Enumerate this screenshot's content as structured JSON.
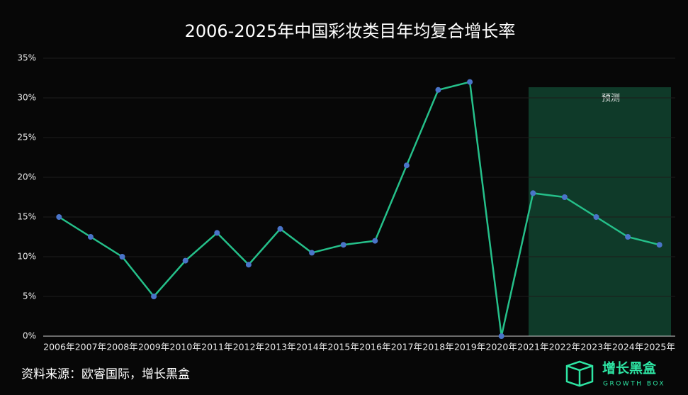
{
  "chart_data": {
    "type": "line",
    "title": "2006-2025年中国彩妆类目年均复合增长率",
    "categories": [
      "2006年",
      "2007年",
      "2008年",
      "2009年",
      "2010年",
      "2011年",
      "2012年",
      "2013年",
      "2014年",
      "2015年",
      "2016年",
      "2017年",
      "2018年",
      "2019年",
      "2020年",
      "2021年",
      "2022年",
      "2023年",
      "2024年",
      "2025年"
    ],
    "series": [
      {
        "color": "#25c08a",
        "marker_color": "#4a74c9",
        "values": [
          15,
          12.5,
          10,
          5,
          9.5,
          13,
          9,
          13.5,
          10.5,
          11.5,
          12,
          21.5,
          31,
          32,
          0,
          18,
          17.5,
          15,
          12.5,
          11.5
        ]
      }
    ],
    "ylim": [
      0,
      35
    ],
    "yticks": [
      {
        "value": 0,
        "label": "0%"
      },
      {
        "value": 5,
        "label": "5%"
      },
      {
        "value": 10,
        "label": "10%"
      },
      {
        "value": 15,
        "label": "15%"
      },
      {
        "value": 20,
        "label": "20%"
      },
      {
        "value": 25,
        "label": "25%"
      },
      {
        "value": 30,
        "label": "30%"
      },
      {
        "value": 35,
        "label": "35%"
      }
    ],
    "grid": true,
    "annotation": "预测",
    "source": "资料来源：欧睿国际，增长黑盒",
    "logo": {
      "name": "增长黑盒",
      "subtitle": "GROWTH BOX"
    }
  }
}
